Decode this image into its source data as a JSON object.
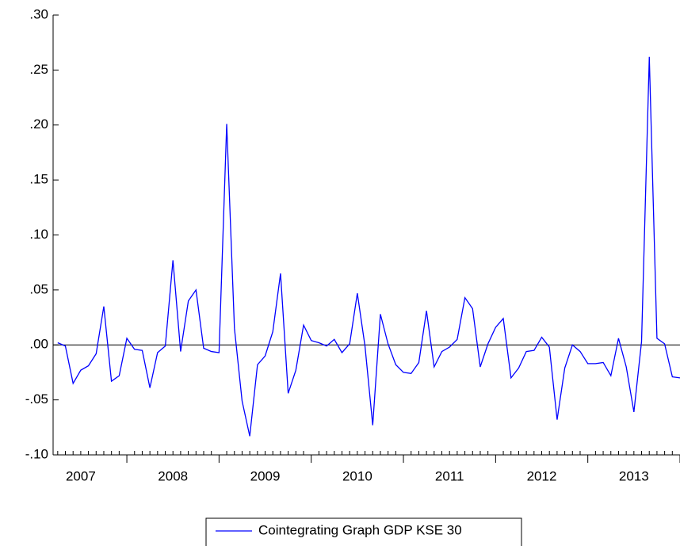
{
  "chart_data": {
    "type": "line",
    "x": [
      2007.25,
      2007.333,
      2007.417,
      2007.5,
      2007.583,
      2007.667,
      2007.75,
      2007.833,
      2007.917,
      2008,
      2008.083,
      2008.167,
      2008.25,
      2008.333,
      2008.417,
      2008.5,
      2008.583,
      2008.667,
      2008.75,
      2008.833,
      2008.917,
      2009,
      2009.083,
      2009.167,
      2009.25,
      2009.333,
      2009.417,
      2009.5,
      2009.583,
      2009.667,
      2009.75,
      2009.833,
      2009.917,
      2010,
      2010.083,
      2010.167,
      2010.25,
      2010.333,
      2010.417,
      2010.5,
      2010.583,
      2010.667,
      2010.75,
      2010.833,
      2010.917,
      2011,
      2011.083,
      2011.167,
      2011.25,
      2011.333,
      2011.417,
      2011.5,
      2011.583,
      2011.667,
      2011.75,
      2011.833,
      2011.917,
      2012,
      2012.083,
      2012.167,
      2012.25,
      2012.333,
      2012.417,
      2012.5,
      2012.583,
      2012.667,
      2012.75,
      2012.833,
      2012.917,
      2013,
      2013.083,
      2013.167,
      2013.25,
      2013.333,
      2013.417,
      2013.5,
      2013.583,
      2013.667,
      2013.75,
      2013.833,
      2013.917,
      2014
    ],
    "series": [
      {
        "name": "Cointegrating Graph GDP KSE 30",
        "color": "#0000ff",
        "values": [
          0.002,
          -0.001,
          -0.035,
          -0.023,
          -0.019,
          -0.008,
          0.035,
          -0.033,
          -0.028,
          0.006,
          -0.004,
          -0.005,
          -0.039,
          -0.007,
          -0.001,
          0.077,
          -0.006,
          0.04,
          0.05,
          -0.003,
          -0.006,
          -0.007,
          0.201,
          0.015,
          -0.051,
          -0.083,
          -0.018,
          -0.01,
          0.012,
          0.065,
          -0.044,
          -0.023,
          0.018,
          0.004,
          0.002,
          -0.001,
          0.005,
          -0.007,
          0.001,
          0.047,
          -0.001,
          -0.073,
          0.028,
          0.001,
          -0.018,
          -0.025,
          -0.026,
          -0.016,
          0.031,
          -0.02,
          -0.006,
          -0.002,
          0.005,
          0.043,
          0.033,
          -0.02,
          0.001,
          0.016,
          0.024,
          -0.03,
          -0.021,
          -0.006,
          -0.005,
          0.007,
          -0.002,
          -0.068,
          -0.021,
          0.0,
          -0.006,
          -0.017,
          -0.017,
          -0.016,
          -0.028,
          0.006,
          -0.02,
          -0.061,
          0.003,
          0.262,
          0.006,
          0.001,
          -0.029,
          -0.03
        ]
      }
    ],
    "xlim": [
      2007.2,
      2014.0
    ],
    "xticks": [
      {
        "value": 2007.5,
        "label": "2007"
      },
      {
        "value": 2008.5,
        "label": "2008"
      },
      {
        "value": 2009.5,
        "label": "2009"
      },
      {
        "value": 2010.5,
        "label": "2010"
      },
      {
        "value": 2011.5,
        "label": "2011"
      },
      {
        "value": 2012.5,
        "label": "2012"
      },
      {
        "value": 2013.5,
        "label": "2013"
      }
    ],
    "ylim": [
      -0.1,
      0.3
    ],
    "yticks": [
      {
        "value": -0.1,
        "label": "-.10"
      },
      {
        "value": -0.05,
        "label": "-.05"
      },
      {
        "value": 0,
        "label": ".00"
      },
      {
        "value": 0.05,
        "label": ".05"
      },
      {
        "value": 0.1,
        "label": ".10"
      },
      {
        "value": 0.15,
        "label": ".15"
      },
      {
        "value": 0.2,
        "label": ".20"
      },
      {
        "value": 0.25,
        "label": ".25"
      },
      {
        "value": 0.3,
        "label": ".30"
      }
    ],
    "zero_line": true,
    "legend": "bottom"
  }
}
